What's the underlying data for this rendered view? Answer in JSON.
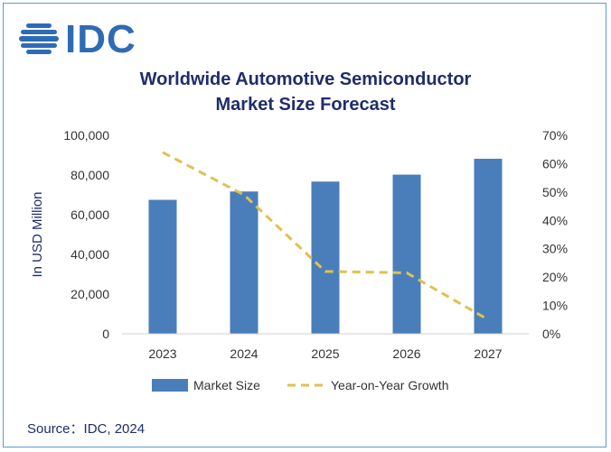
{
  "logo": {
    "text": "IDC"
  },
  "title_lines": [
    "Worldwide Automotive Semiconductor",
    "Market Size Forecast"
  ],
  "source": "Source：IDC, 2024",
  "colors": {
    "bar": "#4a7ebb",
    "line": "#e0c050",
    "title": "#1f2d6b",
    "axis_text": "#333333"
  },
  "chart_data": {
    "type": "bar",
    "title": "Worldwide Automotive Semiconductor Market Size Forecast",
    "categories": [
      "2023",
      "2024",
      "2025",
      "2026",
      "2027"
    ],
    "ylabel": "In USD Million",
    "ylim": [
      0,
      100000
    ],
    "y_ticks": [
      "0",
      "20,000",
      "40,000",
      "60,000",
      "80,000",
      "100,000"
    ],
    "y2lim": [
      0,
      70
    ],
    "y2_ticks": [
      "0%",
      "10%",
      "20%",
      "30%",
      "40%",
      "50%",
      "60%",
      "70%"
    ],
    "series": [
      {
        "name": "Market Size",
        "type": "bar",
        "axis": "left",
        "values": [
          67500,
          71700,
          76700,
          80200,
          88200
        ]
      },
      {
        "name": "Year-on-Year Growth",
        "type": "line",
        "style": "dashed",
        "axis": "right",
        "values": [
          64,
          49,
          22,
          21.5,
          5
        ]
      }
    ],
    "legend": "bottom",
    "grid": false
  }
}
